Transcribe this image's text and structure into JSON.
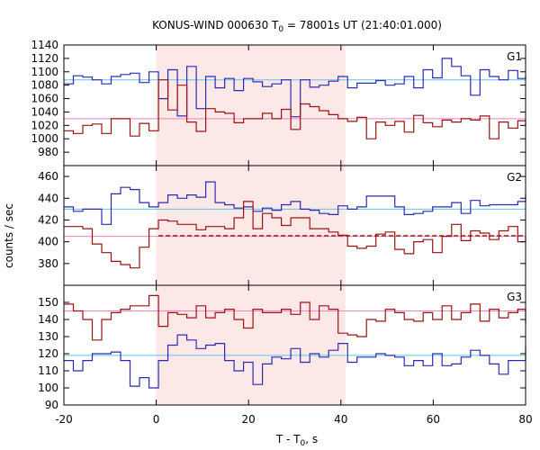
{
  "chart_data": {
    "type": "line",
    "title": "KONUS-WIND 000630 T",
    "title_sub": "0",
    "title_rest": " = 78001s UT (21:40:01.000)",
    "xlabel": "T - T",
    "xlabel_sub": "0",
    "xlabel_rest": ", s",
    "ylabel": "counts / sec",
    "xlim": [
      -20,
      80
    ],
    "x_ticks": [
      -20,
      0,
      20,
      40,
      60,
      80
    ],
    "shaded_interval": [
      0,
      40.96
    ],
    "colors": {
      "blue": "#2b2bb0",
      "red": "#9b1111",
      "light_blue": "#5fc4e8",
      "pink": "#f080c0",
      "shade": "#fde8e8"
    },
    "x": [
      -20,
      -17.952,
      -15.904,
      -13.856,
      -11.808,
      -9.76,
      -7.712,
      -5.664,
      -3.616,
      -1.568,
      0.48,
      2.528,
      4.576,
      6.624,
      8.672,
      10.72,
      12.768,
      14.816,
      16.864,
      18.912,
      20.96,
      23.008,
      25.056,
      27.104,
      29.152,
      31.2,
      33.248,
      35.296,
      37.344,
      39.392,
      41.44,
      43.488,
      45.536,
      47.584,
      49.632,
      51.68,
      53.728,
      55.776,
      57.824,
      59.872,
      61.92,
      63.968,
      66.016,
      68.064,
      70.112,
      72.16,
      74.208,
      76.256,
      78.304,
      80.352
    ],
    "panels": [
      {
        "label": "G1",
        "ylim": [
          960,
          1140
        ],
        "y_ticks": [
          960,
          980,
          1000,
          1020,
          1040,
          1060,
          1080,
          1100,
          1120,
          1140
        ],
        "series": [
          {
            "color": "blue",
            "values": [
              1082,
              1094,
              1092,
              1088,
              1082,
              1093,
              1096,
              1098,
              1084,
              1100,
              1060,
              1103,
              1034,
              1108,
              1045,
              1093,
              1076,
              1090,
              1072,
              1090,
              1085,
              1078,
              1082,
              1088,
              1033,
              1088,
              1077,
              1080,
              1086,
              1093,
              1076,
              1083,
              1083,
              1087,
              1080,
              1082,
              1093,
              1076,
              1103,
              1091,
              1120,
              1108,
              1094,
              1065,
              1103,
              1093,
              1088,
              1102,
              1090,
              1095
            ]
          },
          {
            "color": "red",
            "values": [
              1012,
              1008,
              1020,
              1022,
              1008,
              1030,
              1030,
              1004,
              1023,
              1012,
              1088,
              1043,
              1080,
              1025,
              1011,
              1045,
              1040,
              1038,
              1024,
              1030,
              1030,
              1038,
              1030,
              1044,
              1014,
              1052,
              1048,
              1042,
              1036,
              1030,
              1026,
              1032,
              1000,
              1025,
              1020,
              1026,
              1010,
              1035,
              1024,
              1018,
              1028,
              1025,
              1030,
              1028,
              1034,
              1000,
              1025,
              1016,
              1027,
              1020
            ]
          }
        ],
        "hlines": [
          {
            "color": "light_blue",
            "value": 1088
          },
          {
            "color": "pink",
            "value": 1030
          }
        ],
        "dashed": []
      },
      {
        "label": "G2",
        "ylim": [
          360,
          470
        ],
        "y_ticks": [
          360,
          380,
          400,
          420,
          440,
          460
        ],
        "series": [
          {
            "color": "blue",
            "values": [
              432,
              428,
              430,
              430,
              416,
              444,
              450,
              448,
              436,
              432,
              436,
              443,
              440,
              443,
              441,
              455,
              436,
              434,
              431,
              432,
              428,
              431,
              429,
              434,
              437,
              430,
              429,
              426,
              425,
              433,
              430,
              432,
              442,
              442,
              442,
              432,
              425,
              426,
              428,
              432,
              432,
              436,
              426,
              438,
              433,
              434,
              434,
              434,
              437,
              444
            ]
          },
          {
            "color": "red",
            "values": [
              414,
              414,
              412,
              398,
              390,
              382,
              379,
              376,
              395,
              412,
              420,
              419,
              416,
              416,
              411,
              414,
              414,
              412,
              422,
              437,
              412,
              426,
              422,
              415,
              422,
              422,
              412,
              412,
              409,
              406,
              396,
              394,
              396,
              407,
              409,
              393,
              389,
              400,
              402,
              390,
              405,
              416,
              401,
              410,
              408,
              402,
              410,
              414,
              400,
              405
            ]
          }
        ],
        "hlines": [
          {
            "color": "light_blue",
            "value": 430
          },
          {
            "color": "pink",
            "value": 405
          }
        ],
        "dashed": [
          {
            "color": "red",
            "x0": 0.48,
            "x1": 80.352,
            "y0": 405.5,
            "y1": 405.5
          }
        ]
      },
      {
        "label": "G3",
        "ylim": [
          90,
          160
        ],
        "y_ticks": [
          90,
          100,
          110,
          120,
          130,
          140,
          150
        ],
        "series": [
          {
            "color": "blue",
            "values": [
              116,
              110,
              116,
              120,
              120,
              121,
              116,
              101,
              106,
              100,
              116,
              125,
              131,
              128,
              123,
              125,
              126,
              116,
              110,
              115,
              102,
              114,
              118,
              117,
              123,
              115,
              120,
              118,
              122,
              126,
              115,
              118,
              118,
              120,
              119,
              118,
              113,
              116,
              113,
              120,
              113,
              114,
              118,
              122,
              119,
              114,
              108,
              116,
              116,
              124
            ]
          },
          {
            "color": "red",
            "values": [
              149,
              145,
              140,
              128,
              140,
              144,
              146,
              148,
              148,
              154,
              136,
              144,
              143,
              141,
              148,
              141,
              144,
              146,
              140,
              135,
              146,
              144,
              144,
              146,
              143,
              150,
              140,
              148,
              146,
              132,
              131,
              130,
              140,
              139,
              146,
              144,
              140,
              139,
              144,
              140,
              148,
              140,
              144,
              149,
              139,
              146,
              141,
              144,
              146,
              138
            ]
          }
        ],
        "hlines": [
          {
            "color": "light_blue",
            "value": 119
          },
          {
            "color": "pink",
            "value": 145
          }
        ],
        "dashed": []
      }
    ]
  }
}
